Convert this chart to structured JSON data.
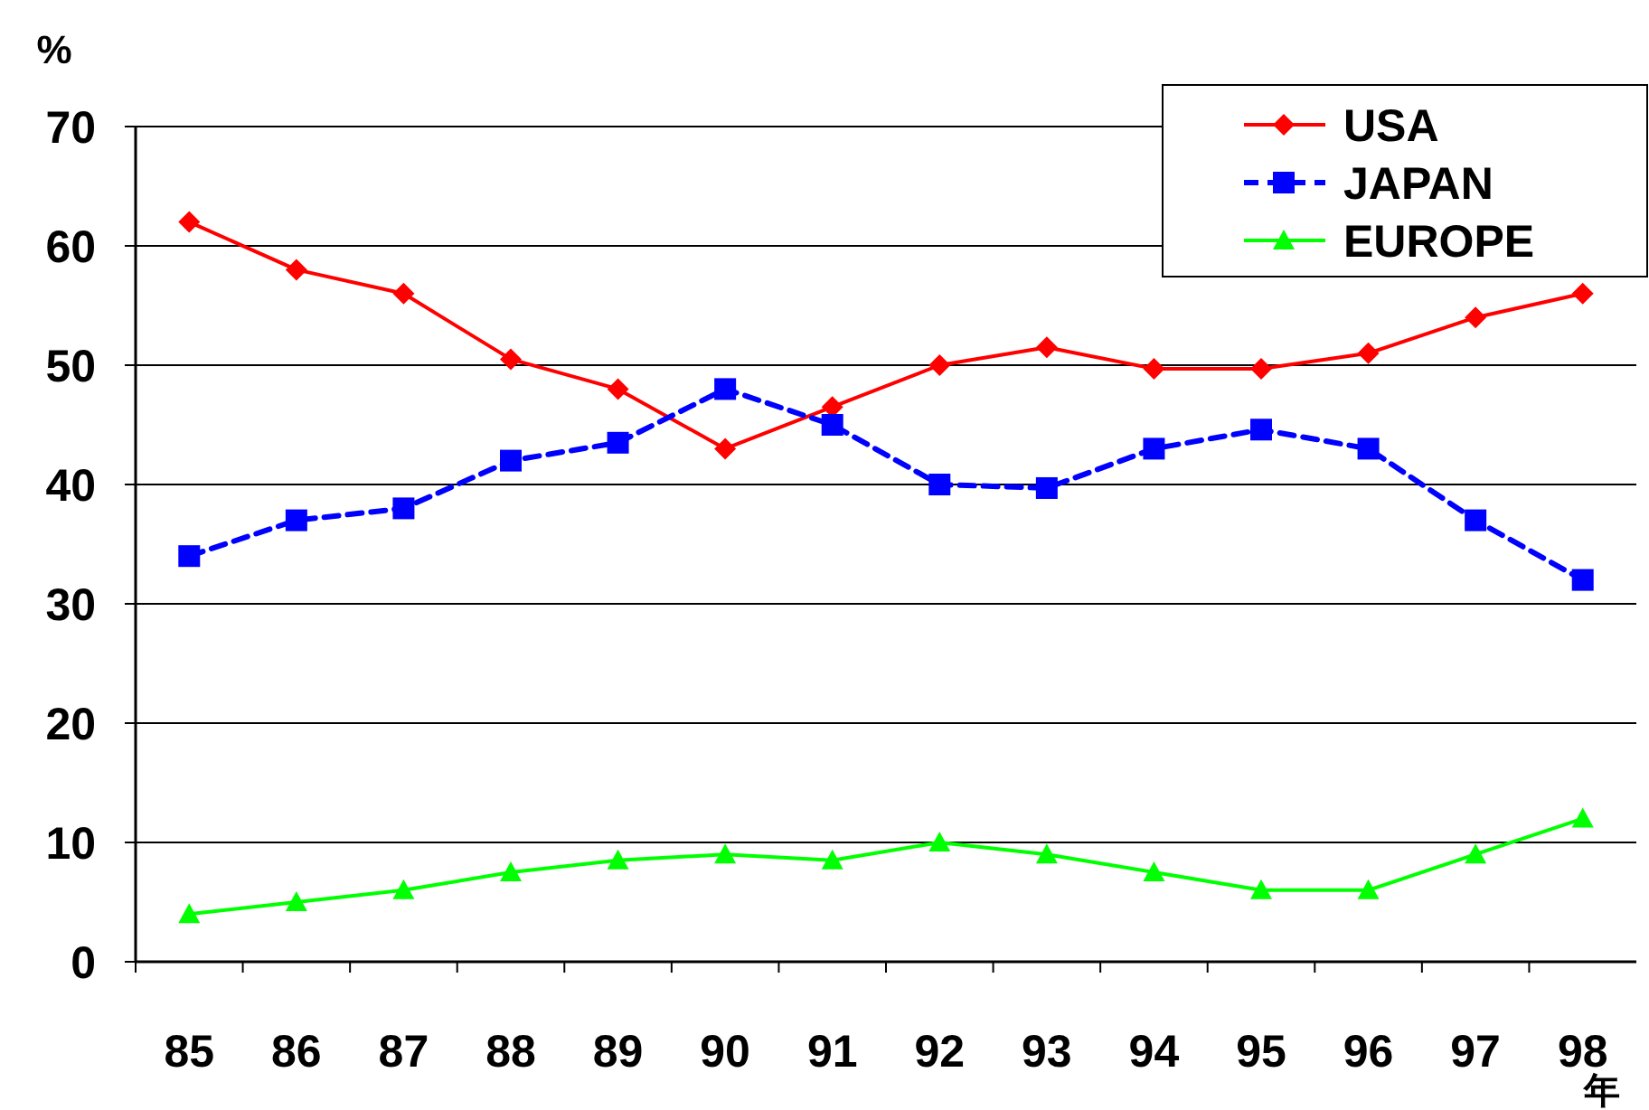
{
  "chart_data": {
    "type": "line",
    "ylabel": "%",
    "xlabel": "年",
    "categories": [
      "85",
      "86",
      "87",
      "88",
      "89",
      "90",
      "91",
      "92",
      "93",
      "94",
      "95",
      "96",
      "97",
      "98"
    ],
    "series": [
      {
        "name": "USA",
        "color": "#ff0000",
        "marker": "diamond",
        "line_style": "solid",
        "values": [
          62,
          58,
          56,
          50.5,
          48,
          43,
          46.5,
          50,
          51.5,
          49.7,
          49.7,
          51,
          54,
          56
        ]
      },
      {
        "name": "JAPAN",
        "color": "#0000ff",
        "marker": "square",
        "line_style": "dashed",
        "values": [
          34,
          37,
          38,
          42,
          43.5,
          48,
          45,
          40,
          39.7,
          43,
          44.6,
          43,
          37,
          32
        ]
      },
      {
        "name": "EUROPE",
        "color": "#00ff00",
        "marker": "triangle",
        "line_style": "solid",
        "values": [
          4,
          5,
          6,
          7.5,
          8.5,
          9,
          8.5,
          10,
          9,
          7.5,
          6,
          6,
          9,
          12
        ]
      }
    ],
    "ylim": [
      0,
      70
    ],
    "yticks": [
      0,
      10,
      20,
      30,
      40,
      50,
      60,
      70
    ],
    "grid": "y",
    "legend": "top right"
  }
}
